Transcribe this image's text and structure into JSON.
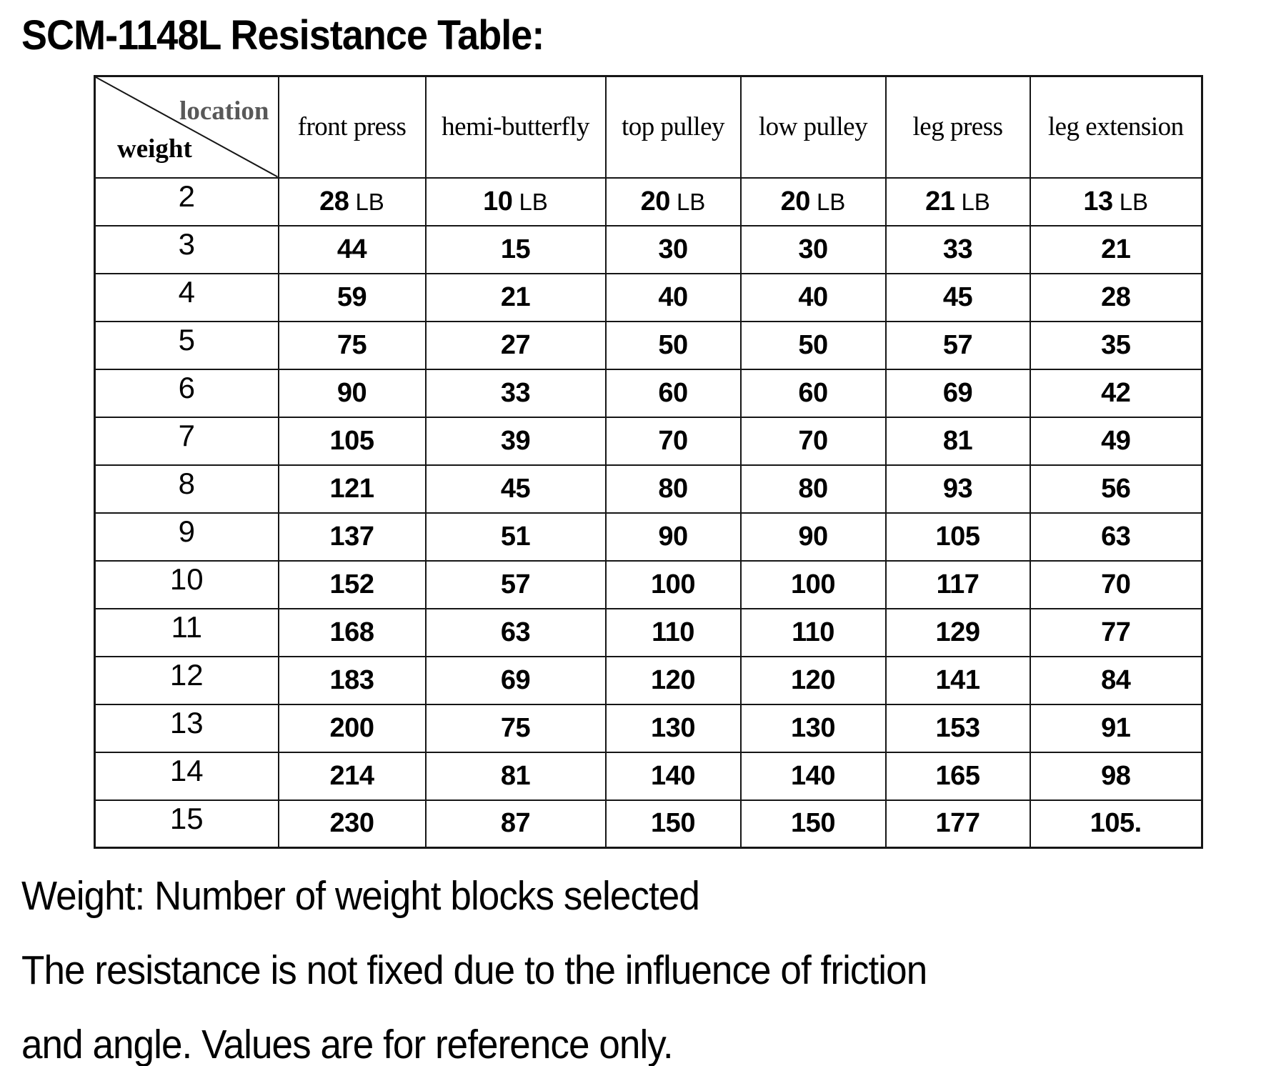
{
  "title": "SCM-1148L Resistance Table:",
  "table": {
    "corner": {
      "top_label": "location",
      "bottom_label": "weight"
    },
    "columns": [
      "front press",
      "hemi-butterfly",
      "top pulley",
      "low pulley",
      "leg press",
      "leg extension"
    ],
    "unit": "LB",
    "rows": [
      {
        "weight": "2",
        "show_unit": true,
        "values": [
          "28",
          "10",
          "20",
          "20",
          "21",
          "13"
        ]
      },
      {
        "weight": "3",
        "show_unit": false,
        "values": [
          "44",
          "15",
          "30",
          "30",
          "33",
          "21"
        ]
      },
      {
        "weight": "4",
        "show_unit": false,
        "values": [
          "59",
          "21",
          "40",
          "40",
          "45",
          "28"
        ]
      },
      {
        "weight": "5",
        "show_unit": false,
        "values": [
          "75",
          "27",
          "50",
          "50",
          "57",
          "35"
        ]
      },
      {
        "weight": "6",
        "show_unit": false,
        "values": [
          "90",
          "33",
          "60",
          "60",
          "69",
          "42"
        ]
      },
      {
        "weight": "7",
        "show_unit": false,
        "values": [
          "105",
          "39",
          "70",
          "70",
          "81",
          "49"
        ]
      },
      {
        "weight": "8",
        "show_unit": false,
        "values": [
          "121",
          "45",
          "80",
          "80",
          "93",
          "56"
        ]
      },
      {
        "weight": "9",
        "show_unit": false,
        "values": [
          "137",
          "51",
          "90",
          "90",
          "105",
          "63"
        ]
      },
      {
        "weight": "10",
        "show_unit": false,
        "values": [
          "152",
          "57",
          "100",
          "100",
          "117",
          "70"
        ]
      },
      {
        "weight": "11",
        "show_unit": false,
        "values": [
          "168",
          "63",
          "110",
          "110",
          "129",
          "77"
        ]
      },
      {
        "weight": "12",
        "show_unit": false,
        "values": [
          "183",
          "69",
          "120",
          "120",
          "141",
          "84"
        ]
      },
      {
        "weight": "13",
        "show_unit": false,
        "values": [
          "200",
          "75",
          "130",
          "130",
          "153",
          "91"
        ]
      },
      {
        "weight": "14",
        "show_unit": false,
        "values": [
          "214",
          "81",
          "140",
          "140",
          "165",
          "98"
        ]
      },
      {
        "weight": "15",
        "show_unit": false,
        "values": [
          "230",
          "87",
          "150",
          "150",
          "177",
          "105."
        ]
      }
    ]
  },
  "footer": {
    "line1": "Weight: Number of weight blocks selected",
    "line2": "The resistance is not fixed due to the influence of friction",
    "line3": "and angle. Values are for reference only."
  },
  "colors": {
    "text": "#000000",
    "corner_location_label": "#595959",
    "table_border": "#161616",
    "background": "#ffffff"
  }
}
